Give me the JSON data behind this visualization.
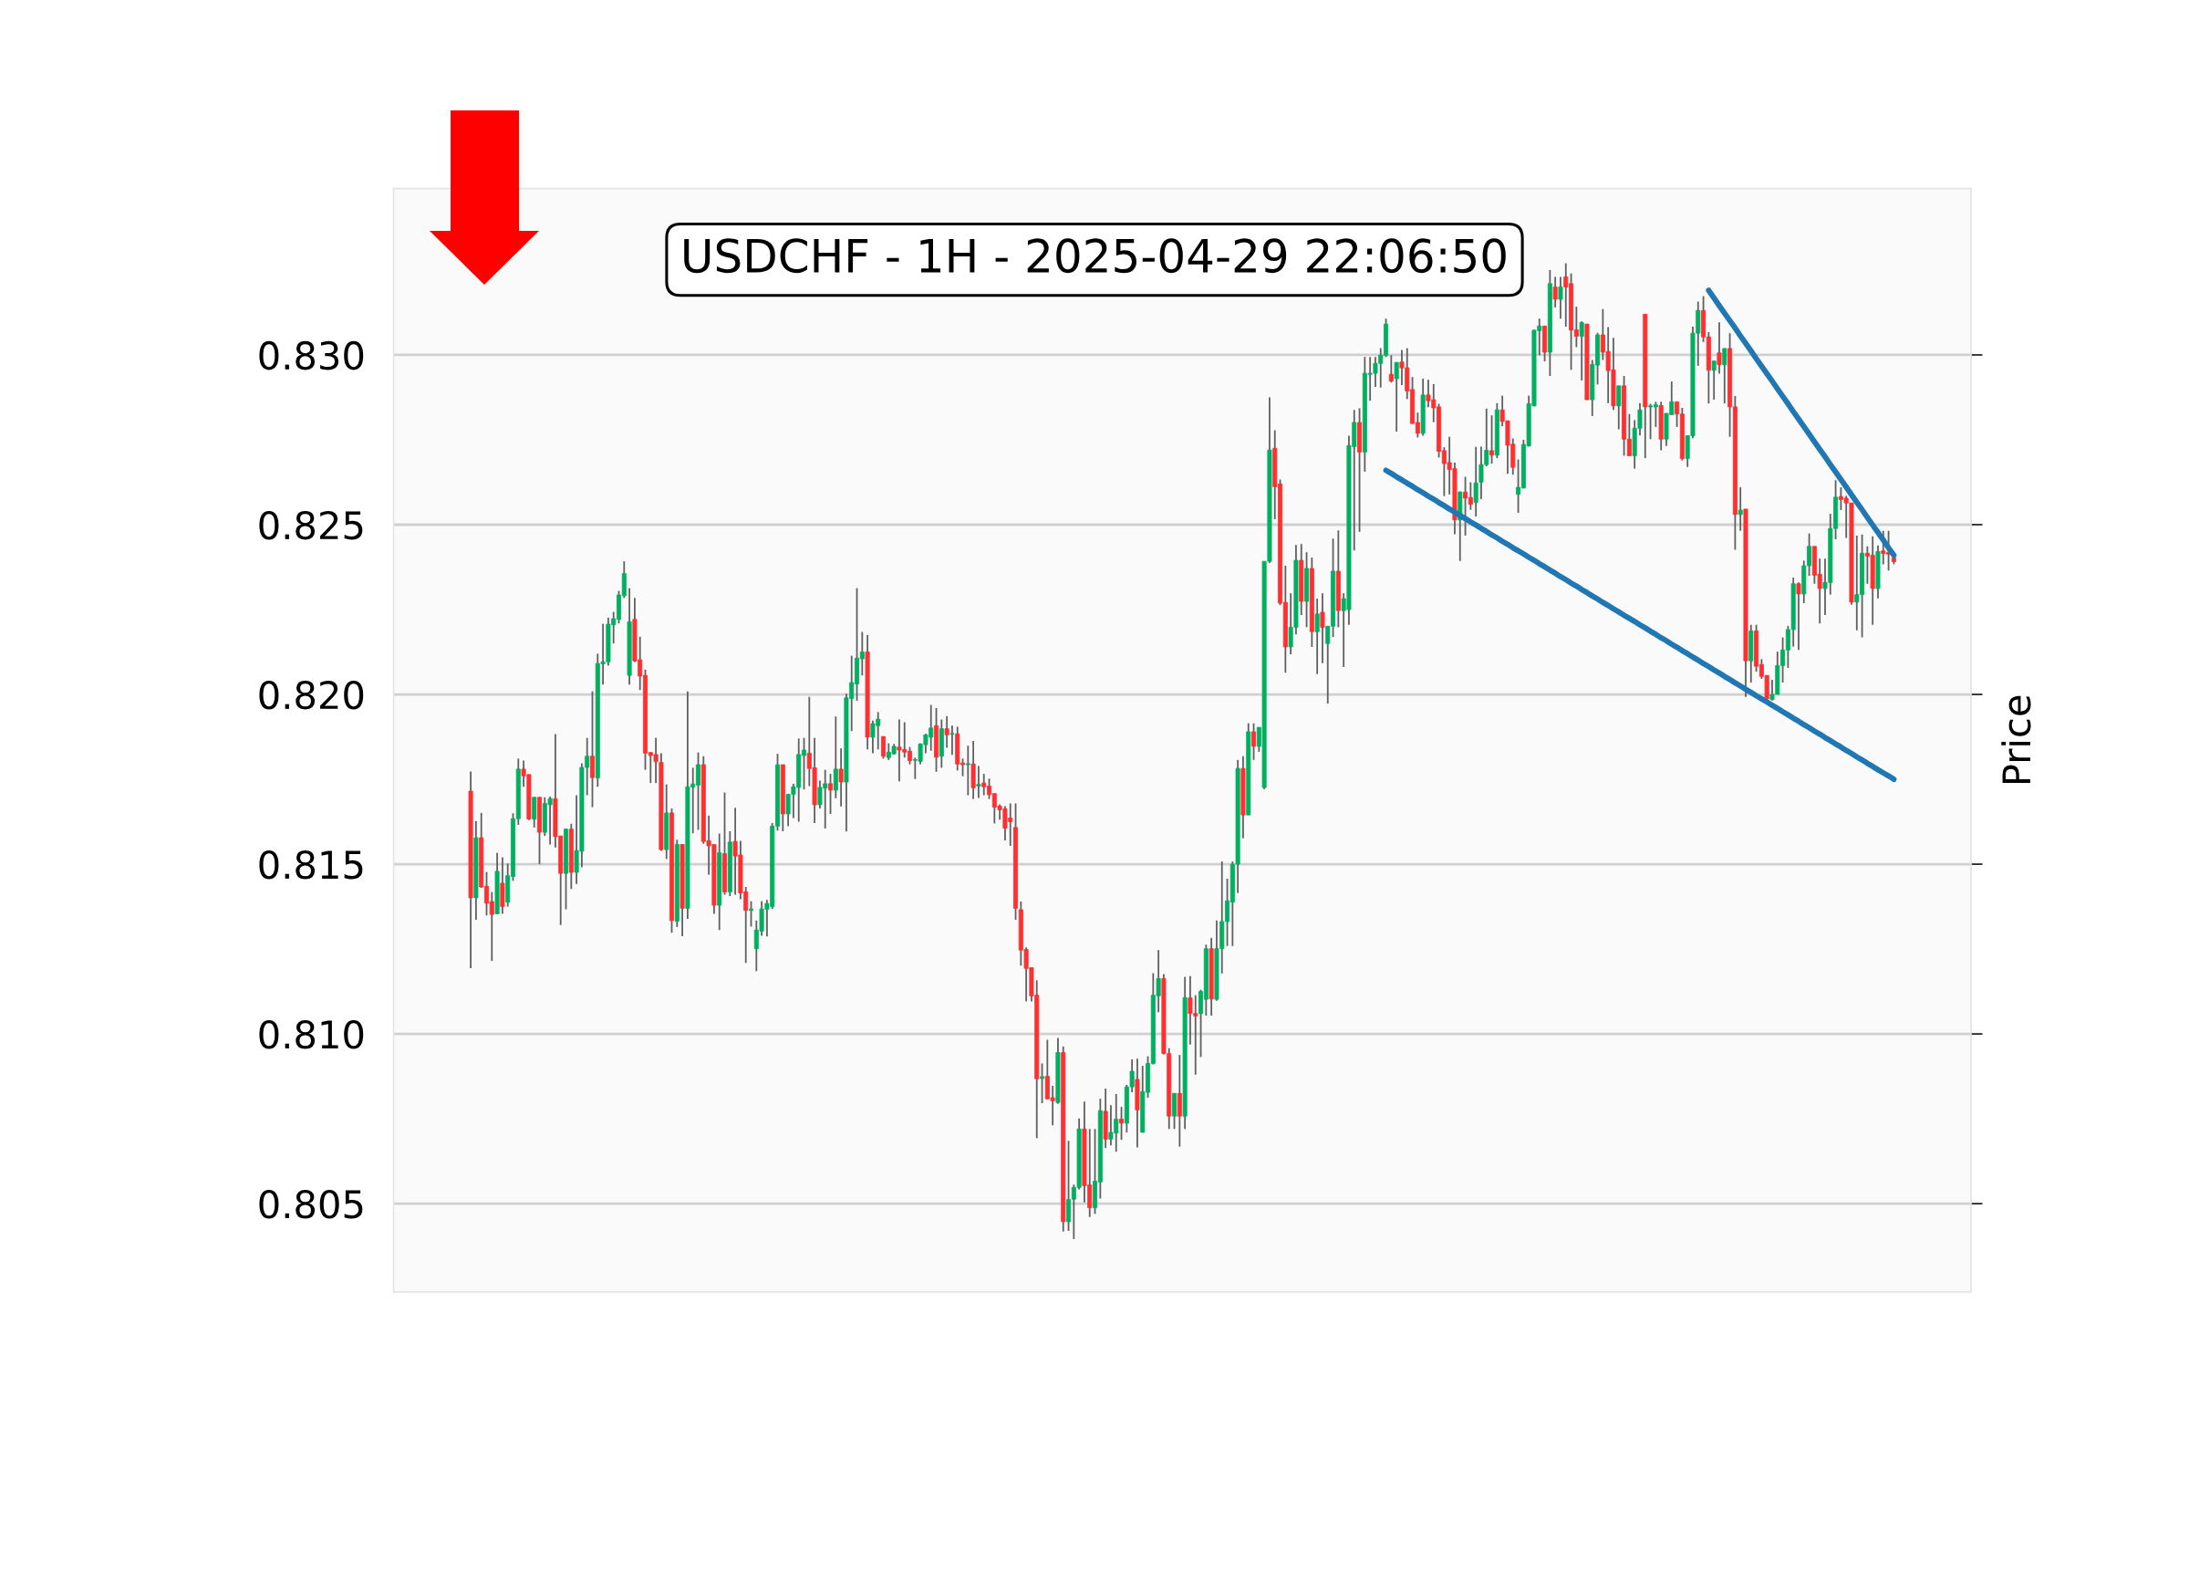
{
  "chart_data": {
    "type": "candlestick",
    "title": "USDCHF - 1H - 2025-04-29 22:06:50",
    "ylabel": "Price",
    "categories": [
      null,
      null,
      null,
      null,
      null,
      null,
      null,
      null,
      null,
      null,
      null,
      null,
      null,
      null,
      null,
      null,
      null,
      null,
      null,
      null,
      null,
      null,
      null,
      null,
      null,
      null,
      null,
      null,
      null,
      null,
      null,
      null,
      null,
      null,
      null,
      null,
      null,
      null,
      null,
      null,
      null,
      null,
      null,
      null,
      null,
      null,
      null,
      null,
      null,
      null,
      null,
      null,
      null,
      null,
      null,
      null,
      null,
      null,
      null,
      null,
      null,
      null,
      null,
      null,
      null,
      null,
      null,
      null,
      null,
      null,
      null,
      null,
      null,
      null,
      null,
      null,
      null,
      null,
      null,
      null,
      null,
      null,
      null,
      null,
      null,
      null,
      null,
      null,
      null,
      null,
      null,
      null,
      null,
      null,
      null,
      null,
      null,
      null,
      null,
      null,
      null,
      null,
      null,
      null,
      null,
      null,
      null,
      null,
      null,
      null,
      null,
      null,
      null,
      null,
      null,
      null,
      null,
      null,
      null,
      null,
      null,
      null,
      null,
      null,
      null,
      null,
      null,
      null,
      null,
      null,
      null,
      null,
      null,
      null,
      null,
      null,
      null,
      null,
      null,
      null,
      null,
      null,
      null,
      null,
      null,
      null,
      null,
      null,
      null,
      null,
      null,
      null,
      null,
      null,
      null,
      null,
      null,
      null,
      null,
      null,
      null,
      null,
      null,
      null,
      null,
      null,
      null,
      null,
      null,
      null,
      null,
      null,
      null,
      null,
      null,
      null,
      null,
      null,
      null,
      null,
      null,
      null,
      null,
      null,
      null,
      null,
      null,
      null,
      null,
      null,
      null,
      null,
      null,
      null,
      null,
      null,
      null,
      null,
      null,
      null,
      null,
      null,
      null,
      null,
      null,
      null,
      null,
      null,
      null,
      null,
      null,
      null,
      null,
      null,
      null,
      null,
      null,
      null,
      null,
      null,
      null,
      null,
      null,
      null,
      null,
      null,
      null,
      null,
      null,
      null,
      null,
      null,
      null,
      null,
      null,
      null,
      null,
      null,
      null,
      null,
      null,
      null,
      null,
      null,
      null,
      null,
      null,
      null,
      null,
      null,
      null,
      null,
      null,
      null,
      null,
      null,
      null,
      null,
      null,
      null,
      null,
      null,
      null,
      null,
      null,
      null,
      null,
      null,
      null,
      null
    ],
    "ohlc": [
      [
        0.81715,
        0.81773,
        0.81194,
        0.81401
      ],
      [
        0.81401,
        0.81627,
        0.81336,
        0.81578
      ],
      [
        0.81578,
        0.81651,
        0.8143,
        0.81433
      ],
      [
        0.81435,
        0.81477,
        0.81349,
        0.81385
      ],
      [
        0.8139,
        0.81418,
        0.81215,
        0.81352
      ],
      [
        0.81354,
        0.81533,
        0.81354,
        0.81479
      ],
      [
        0.81444,
        0.8152,
        0.81354,
        0.81375
      ],
      [
        0.81388,
        0.81502,
        0.81375,
        0.81466
      ],
      [
        0.81464,
        0.8165,
        0.81451,
        0.81634
      ],
      [
        0.81634,
        0.81811,
        0.81616,
        0.8178
      ],
      [
        0.8178,
        0.81805,
        0.81728,
        0.8176
      ],
      [
        0.81764,
        0.81764,
        0.8163,
        0.81633
      ],
      [
        0.81633,
        0.81697,
        0.81608,
        0.81697
      ],
      [
        0.81697,
        0.81697,
        0.815,
        0.81594
      ],
      [
        0.81594,
        0.81697,
        0.81583,
        0.81679
      ],
      [
        0.81675,
        0.81699,
        0.81558,
        0.81693
      ],
      [
        0.81693,
        0.81883,
        0.81549,
        0.81581
      ],
      [
        0.81583,
        0.81583,
        0.81321,
        0.81473
      ],
      [
        0.81473,
        0.81605,
        0.81367,
        0.81603
      ],
      [
        0.81603,
        0.81619,
        0.81427,
        0.81476
      ],
      [
        0.81476,
        0.81703,
        0.81442,
        0.8154
      ],
      [
        0.81538,
        0.81797,
        0.81491,
        0.81785
      ],
      [
        0.81785,
        0.81872,
        0.81703,
        0.81818
      ],
      [
        0.81818,
        0.82009,
        0.81668,
        0.81755
      ],
      [
        0.81754,
        0.8212,
        0.81728,
        0.82091
      ],
      [
        0.8209,
        0.82208,
        0.82029,
        0.82096
      ],
      [
        0.82096,
        0.82226,
        0.82085,
        0.82207
      ],
      [
        0.82205,
        0.82243,
        0.8215,
        0.82223
      ],
      [
        0.82221,
        0.82305,
        0.82209,
        0.82293
      ],
      [
        0.82291,
        0.82392,
        0.82284,
        0.82356
      ],
      [
        0.82056,
        0.82313,
        0.82029,
        0.82214
      ],
      [
        0.82221,
        0.82284,
        0.82095,
        0.82099
      ],
      [
        0.82102,
        0.8217,
        0.82013,
        0.82054
      ],
      [
        0.82056,
        0.82073,
        0.81778,
        0.81827
      ],
      [
        0.81829,
        0.81829,
        0.81739,
        0.8182
      ],
      [
        0.81823,
        0.81872,
        0.81739,
        0.81802
      ],
      [
        0.818,
        0.81827,
        0.81539,
        0.81543
      ],
      [
        0.81543,
        0.81735,
        0.81515,
        0.81651
      ],
      [
        0.81651,
        0.81664,
        0.81298,
        0.81334
      ],
      [
        0.81332,
        0.81572,
        0.81315,
        0.81558
      ],
      [
        0.81558,
        0.81558,
        0.81288,
        0.8137
      ],
      [
        0.8137,
        0.82009,
        0.81339,
        0.81728
      ],
      [
        0.81727,
        0.81784,
        0.81591,
        0.81736
      ],
      [
        0.81733,
        0.81829,
        0.81601,
        0.81793
      ],
      [
        0.81793,
        0.81818,
        0.8156,
        0.81567
      ],
      [
        0.81569,
        0.81643,
        0.81469,
        0.81554
      ],
      [
        0.81558,
        0.81558,
        0.81354,
        0.81379
      ],
      [
        0.81379,
        0.8159,
        0.81306,
        0.81534
      ],
      [
        0.81531,
        0.81711,
        0.8141,
        0.81418
      ],
      [
        0.81418,
        0.81597,
        0.81406,
        0.81565
      ],
      [
        0.81567,
        0.81666,
        0.8141,
        0.81524
      ],
      [
        0.81527,
        0.81569,
        0.81397,
        0.81415
      ],
      [
        0.81419,
        0.81433,
        0.81209,
        0.81364
      ],
      [
        0.81364,
        0.81391,
        0.81316,
        0.81368
      ],
      [
        0.81251,
        0.81334,
        0.81185,
        0.81306
      ],
      [
        0.81303,
        0.81391,
        0.81289,
        0.81368
      ],
      [
        0.81367,
        0.81395,
        0.81287,
        0.81384
      ],
      [
        0.81375,
        0.81621,
        0.81368,
        0.81612
      ],
      [
        0.81612,
        0.81825,
        0.81599,
        0.81793
      ],
      [
        0.81793,
        0.81793,
        0.81597,
        0.81648
      ],
      [
        0.81648,
        0.81706,
        0.81612,
        0.81706
      ],
      [
        0.81706,
        0.81737,
        0.81636,
        0.81728
      ],
      [
        0.81726,
        0.8187,
        0.81625,
        0.81823
      ],
      [
        0.8182,
        0.81872,
        0.8172,
        0.81836
      ],
      [
        0.81827,
        0.81993,
        0.8173,
        0.81782
      ],
      [
        0.81784,
        0.81872,
        0.81621,
        0.81675
      ],
      [
        0.81675,
        0.81746,
        0.81664,
        0.81726
      ],
      [
        0.81724,
        0.81778,
        0.81605,
        0.81737
      ],
      [
        0.81737,
        0.81766,
        0.81648,
        0.81718
      ],
      [
        0.81718,
        0.81935,
        0.81694,
        0.8178
      ],
      [
        0.8178,
        0.81841,
        0.8167,
        0.81742
      ],
      [
        0.81742,
        0.82002,
        0.81596,
        0.8199
      ],
      [
        0.81988,
        0.82114,
        0.81892,
        0.82035
      ],
      [
        0.82031,
        0.82313,
        0.81981,
        0.82107
      ],
      [
        0.82105,
        0.82184,
        0.82056,
        0.82125
      ],
      [
        0.82125,
        0.82175,
        0.81838,
        0.81874
      ],
      [
        0.81874,
        0.81923,
        0.81827,
        0.81914
      ],
      [
        0.81908,
        0.81948,
        0.81838,
        0.81927
      ],
      [
        0.81876,
        0.81876,
        0.81811,
        0.81818
      ],
      [
        0.81814,
        0.81856,
        0.81807,
        0.8183
      ],
      [
        0.81825,
        0.81854,
        0.81823,
        0.81847
      ],
      [
        0.81845,
        0.81926,
        0.81744,
        0.81836
      ],
      [
        0.81838,
        0.81918,
        0.81814,
        0.8183
      ],
      [
        0.81833,
        0.81845,
        0.81794,
        0.81805
      ],
      [
        0.81806,
        0.81814,
        0.81751,
        0.81808
      ],
      [
        0.81803,
        0.81856,
        0.81794,
        0.81854
      ],
      [
        0.81852,
        0.81884,
        0.81827,
        0.81881
      ],
      [
        0.81874,
        0.81969,
        0.81834,
        0.81901
      ],
      [
        0.81908,
        0.8196,
        0.81772,
        0.81815
      ],
      [
        0.81818,
        0.81926,
        0.81784,
        0.81899
      ],
      [
        0.81899,
        0.81936,
        0.81843,
        0.81881
      ],
      [
        0.81883,
        0.81908,
        0.81822,
        0.81885
      ],
      [
        0.81884,
        0.81905,
        0.81776,
        0.81795
      ],
      [
        0.81798,
        0.81811,
        0.81759,
        0.81793
      ],
      [
        0.81793,
        0.81849,
        0.81703,
        0.81796
      ],
      [
        0.81795,
        0.81863,
        0.81692,
        0.81725
      ],
      [
        0.8173,
        0.81789,
        0.81695,
        0.81735
      ],
      [
        0.81739,
        0.81766,
        0.81703,
        0.81728
      ],
      [
        0.8173,
        0.81752,
        0.81692,
        0.81705
      ],
      [
        0.81708,
        0.81708,
        0.8162,
        0.81668
      ],
      [
        0.81671,
        0.81676,
        0.81631,
        0.8166
      ],
      [
        0.81663,
        0.81671,
        0.8157,
        0.81606
      ],
      [
        0.81636,
        0.81679,
        0.81554,
        0.81625
      ],
      [
        0.81608,
        0.81679,
        0.81336,
        0.8137
      ],
      [
        0.81366,
        0.8139,
        0.81201,
        0.81247
      ],
      [
        0.81249,
        0.81255,
        0.81096,
        0.81193
      ],
      [
        0.81195,
        0.81195,
        0.81096,
        0.81112
      ],
      [
        0.81114,
        0.81158,
        0.80693,
        0.80868
      ],
      [
        0.80869,
        0.80913,
        0.80796,
        0.80874
      ],
      [
        0.80875,
        0.80983,
        0.80807,
        0.80809
      ],
      [
        0.80812,
        0.80847,
        0.80731,
        0.80803
      ],
      [
        0.80798,
        0.80988,
        0.80794,
        0.80945
      ],
      [
        0.80945,
        0.80963,
        0.80418,
        0.80447
      ],
      [
        0.80447,
        0.80685,
        0.8042,
        0.80512
      ],
      [
        0.80513,
        0.80556,
        0.80396,
        0.80548
      ],
      [
        0.80548,
        0.80751,
        0.80542,
        0.8072
      ],
      [
        0.8072,
        0.80801,
        0.80504,
        0.80553
      ],
      [
        0.80555,
        0.8072,
        0.80461,
        0.80488
      ],
      [
        0.80488,
        0.8072,
        0.8047,
        0.80566
      ],
      [
        0.80564,
        0.80809,
        0.80515,
        0.80774
      ],
      [
        0.80772,
        0.80839,
        0.80664,
        0.8069
      ],
      [
        0.8069,
        0.8079,
        0.80672,
        0.8071
      ],
      [
        0.80708,
        0.80823,
        0.80653,
        0.80749
      ],
      [
        0.80749,
        0.80785,
        0.80688,
        0.80737
      ],
      [
        0.80737,
        0.8085,
        0.8071,
        0.80844
      ],
      [
        0.80844,
        0.80925,
        0.80828,
        0.8089
      ],
      [
        0.80866,
        0.80927,
        0.80666,
        0.80776
      ],
      [
        0.8071,
        0.80906,
        0.8071,
        0.8083
      ],
      [
        0.80828,
        0.80934,
        0.80812,
        0.80913
      ],
      [
        0.80913,
        0.81179,
        0.8091,
        0.81114
      ],
      [
        0.81112,
        0.81247,
        0.81064,
        0.81163
      ],
      [
        0.81163,
        0.81176,
        0.8094,
        0.80942
      ],
      [
        0.80942,
        0.80958,
        0.8072,
        0.80758
      ],
      [
        0.80758,
        0.80825,
        0.8072,
        0.80825
      ],
      [
        0.80825,
        0.80938,
        0.80668,
        0.80758
      ],
      [
        0.80758,
        0.81168,
        0.8072,
        0.81107
      ],
      [
        0.81106,
        0.8117,
        0.80969,
        0.8106
      ],
      [
        0.8106,
        0.81114,
        0.8088,
        0.81053
      ],
      [
        0.8106,
        0.8113,
        0.80932,
        0.81125
      ],
      [
        0.81102,
        0.81263,
        0.81054,
        0.81251
      ],
      [
        0.81251,
        0.81283,
        0.81054,
        0.81103
      ],
      [
        0.81102,
        0.81334,
        0.81098,
        0.81251
      ],
      [
        0.81251,
        0.81508,
        0.81178,
        0.81331
      ],
      [
        0.81331,
        0.81457,
        0.81259,
        0.81392
      ],
      [
        0.81388,
        0.81508,
        0.81259,
        0.815
      ],
      [
        0.815,
        0.81807,
        0.81415,
        0.81782
      ],
      [
        0.81782,
        0.81818,
        0.81576,
        0.81645
      ],
      [
        0.81645,
        0.81915,
        0.81645,
        0.8189
      ],
      [
        0.8189,
        0.81915,
        0.81807,
        0.81847
      ],
      [
        0.81847,
        0.81903,
        0.81831,
        0.81903
      ],
      [
        0.81726,
        0.82392,
        0.81721,
        0.82392
      ],
      [
        0.82392,
        0.82875,
        0.82387,
        0.8272
      ],
      [
        0.82725,
        0.82778,
        0.82516,
        0.82612
      ],
      [
        0.8262,
        0.82633,
        0.82263,
        0.82269
      ],
      [
        0.82271,
        0.82379,
        0.82064,
        0.8214
      ],
      [
        0.8214,
        0.82298,
        0.82118,
        0.82198
      ],
      [
        0.82198,
        0.8244,
        0.82177,
        0.82395
      ],
      [
        0.82395,
        0.82443,
        0.82234,
        0.82274
      ],
      [
        0.82274,
        0.82419,
        0.82198,
        0.82371
      ],
      [
        0.82371,
        0.82403,
        0.8214,
        0.82185
      ],
      [
        0.82185,
        0.82282,
        0.8206,
        0.82237
      ],
      [
        0.82242,
        0.82298,
        0.82092,
        0.82197
      ],
      [
        0.8215,
        0.82201,
        0.81973,
        0.82201
      ],
      [
        0.82201,
        0.82459,
        0.82169,
        0.82363
      ],
      [
        0.82363,
        0.82483,
        0.82198,
        0.82247
      ],
      [
        0.82247,
        0.82298,
        0.82081,
        0.82282
      ],
      [
        0.8225,
        0.82762,
        0.82205,
        0.82733
      ],
      [
        0.8273,
        0.82838,
        0.82424,
        0.82801
      ],
      [
        0.82801,
        0.82843,
        0.82479,
        0.82714
      ],
      [
        0.82714,
        0.82994,
        0.82656,
        0.82946
      ],
      [
        0.82943,
        0.82994,
        0.82865,
        0.82946
      ],
      [
        0.82946,
        0.82994,
        0.82906,
        0.82975
      ],
      [
        0.82975,
        0.8302,
        0.82904,
        0.82999
      ],
      [
        0.82999,
        0.83107,
        0.82994,
        0.83091
      ],
      [
        0.82943,
        0.82999,
        0.82919,
        0.82923
      ],
      [
        0.8293,
        0.82978,
        0.82774,
        0.82978
      ],
      [
        0.82979,
        0.83015,
        0.82911,
        0.82962
      ],
      [
        0.82962,
        0.8302,
        0.8287,
        0.82894
      ],
      [
        0.82898,
        0.82935,
        0.82798,
        0.82798
      ],
      [
        0.82801,
        0.8283,
        0.82757,
        0.82769
      ],
      [
        0.82769,
        0.8293,
        0.82762,
        0.82882
      ],
      [
        0.82882,
        0.82927,
        0.82846,
        0.82865
      ],
      [
        0.82868,
        0.82914,
        0.82802,
        0.82844
      ],
      [
        0.82847,
        0.82856,
        0.82698,
        0.82716
      ],
      [
        0.82718,
        0.82728,
        0.82584,
        0.8268
      ],
      [
        0.82683,
        0.82759,
        0.82589,
        0.82662
      ],
      [
        0.82665,
        0.82683,
        0.82472,
        0.82514
      ],
      [
        0.82514,
        0.82598,
        0.82393,
        0.82596
      ],
      [
        0.82596,
        0.82641,
        0.82468,
        0.82578
      ],
      [
        0.8258,
        0.82625,
        0.82544,
        0.8256
      ],
      [
        0.82566,
        0.82729,
        0.82524,
        0.82623
      ],
      [
        0.82625,
        0.8273,
        0.82575,
        0.82677
      ],
      [
        0.82677,
        0.82842,
        0.82672,
        0.82719
      ],
      [
        0.82718,
        0.82822,
        0.8268,
        0.82705
      ],
      [
        0.82705,
        0.82858,
        0.82696,
        0.82838
      ],
      [
        0.82838,
        0.8288,
        0.8279,
        0.82804
      ],
      [
        0.82806,
        0.82806,
        0.8265,
        0.82734
      ],
      [
        0.82737,
        0.82754,
        0.82647,
        0.82669
      ],
      [
        0.82589,
        0.82692,
        0.82535,
        0.8261
      ],
      [
        0.82608,
        0.8275,
        0.82607,
        0.82736
      ],
      [
        0.82732,
        0.8288,
        0.8273,
        0.82856
      ],
      [
        0.8285,
        0.83073,
        0.82849,
        0.83073
      ],
      [
        0.83071,
        0.83107,
        0.82999,
        0.83085
      ],
      [
        0.83085,
        0.83085,
        0.82981,
        0.83008
      ],
      [
        0.83008,
        0.8325,
        0.82938,
        0.8321
      ],
      [
        0.832,
        0.8323,
        0.8314,
        0.83164
      ],
      [
        0.83164,
        0.8323,
        0.83107,
        0.832
      ],
      [
        0.8323,
        0.8327,
        0.83083,
        0.832
      ],
      [
        0.8321,
        0.8324,
        0.82956,
        0.83073
      ],
      [
        0.83074,
        0.83142,
        0.83023,
        0.83055
      ],
      [
        0.83055,
        0.83099,
        0.82925,
        0.83095
      ],
      [
        0.83091,
        0.83091,
        0.82868,
        0.82868
      ],
      [
        0.82868,
        0.82985,
        0.8282,
        0.82972
      ],
      [
        0.8297,
        0.83065,
        0.82913,
        0.83059
      ],
      [
        0.83059,
        0.83135,
        0.82985,
        0.83008
      ],
      [
        0.8301,
        0.83082,
        0.82858,
        0.82954
      ],
      [
        0.82956,
        0.8305,
        0.82838,
        0.8285
      ],
      [
        0.8285,
        0.82909,
        0.82781,
        0.82909
      ],
      [
        0.82909,
        0.82938,
        0.82703,
        0.82752
      ],
      [
        0.82752,
        0.82826,
        0.82703,
        0.82703
      ],
      [
        0.82703,
        0.82808,
        0.82665,
        0.82784
      ],
      [
        0.82784,
        0.82858,
        0.82763,
        0.82838
      ],
      [
        0.8312,
        0.8312,
        0.82696,
        0.82847
      ],
      [
        0.82847,
        0.82856,
        0.82752,
        0.8285
      ],
      [
        0.82847,
        0.82862,
        0.82788,
        0.82853
      ],
      [
        0.82851,
        0.82862,
        0.82719,
        0.82752
      ],
      [
        0.82752,
        0.82828,
        0.82732,
        0.82828
      ],
      [
        0.82824,
        0.82922,
        0.82824,
        0.82862
      ],
      [
        0.82862,
        0.82862,
        0.82788,
        0.82826
      ],
      [
        0.82826,
        0.82844,
        0.82689,
        0.82695
      ],
      [
        0.82695,
        0.82762,
        0.8267,
        0.82762
      ],
      [
        0.82762,
        0.83083,
        0.82755,
        0.83064
      ],
      [
        0.83064,
        0.83157,
        0.82968,
        0.83131
      ],
      [
        0.83131,
        0.83173,
        0.83038,
        0.83053
      ],
      [
        0.83053,
        0.83067,
        0.82857,
        0.82955
      ],
      [
        0.82955,
        0.82982,
        0.82868,
        0.82982
      ],
      [
        0.83006,
        0.83096,
        0.82945,
        0.82971
      ],
      [
        0.82971,
        0.83019,
        0.82857,
        0.83019
      ],
      [
        0.83019,
        0.83064,
        0.82759,
        0.82847
      ],
      [
        0.82847,
        0.82879,
        0.82426,
        0.8253
      ],
      [
        0.8253,
        0.8261,
        0.82482,
        0.82543
      ],
      [
        0.82546,
        0.82546,
        0.81993,
        0.82099
      ],
      [
        0.82099,
        0.82205,
        0.82035,
        0.82187
      ],
      [
        0.82187,
        0.82205,
        0.82067,
        0.82083
      ],
      [
        0.82088,
        0.82104,
        0.82046,
        0.82053
      ],
      [
        0.82056,
        0.82056,
        0.81982,
        0.81987
      ],
      [
        0.81985,
        0.82043,
        0.81982,
        0.82
      ],
      [
        0.82,
        0.82126,
        0.82,
        0.82085
      ],
      [
        0.82085,
        0.82168,
        0.82035,
        0.82131
      ],
      [
        0.82131,
        0.82202,
        0.82078,
        0.82191
      ],
      [
        0.82191,
        0.82344,
        0.82141,
        0.82326
      ],
      [
        0.82326,
        0.8233,
        0.82131,
        0.82296
      ],
      [
        0.82296,
        0.82394,
        0.82269,
        0.82379
      ],
      [
        0.82379,
        0.82474,
        0.82349,
        0.82436
      ],
      [
        0.82436,
        0.82436,
        0.82326,
        0.82351
      ],
      [
        0.82354,
        0.824,
        0.82209,
        0.82312
      ],
      [
        0.82312,
        0.824,
        0.82234,
        0.8233
      ],
      [
        0.8233,
        0.82532,
        0.82294,
        0.82489
      ],
      [
        0.82489,
        0.82631,
        0.82457,
        0.82581
      ],
      [
        0.82583,
        0.8261,
        0.82543,
        0.82574
      ],
      [
        0.82578,
        0.82585,
        0.82461,
        0.82564
      ],
      [
        0.82564,
        0.82564,
        0.82264,
        0.82272
      ],
      [
        0.82272,
        0.82468,
        0.82189,
        0.82294
      ],
      [
        0.82294,
        0.82471,
        0.82168,
        0.82416
      ],
      [
        0.82416,
        0.82436,
        0.82326,
        0.82407
      ],
      [
        0.8241,
        0.82466,
        0.82205,
        0.82312
      ],
      [
        0.82312,
        0.82439,
        0.82283,
        0.82421
      ],
      [
        0.82423,
        0.82482,
        0.82383,
        0.82415
      ],
      [
        0.82418,
        0.82482,
        0.82365,
        0.82413
      ],
      [
        0.82402,
        0.82407,
        0.82383,
        0.82391
      ]
    ],
    "series": [
      {
        "type": "line",
        "color": "#1f77b4",
        "values": [
          null,
          null,
          null,
          null,
          null,
          null,
          null,
          null,
          null,
          null,
          null,
          null,
          null,
          null,
          null,
          null,
          null,
          null,
          null,
          null,
          null,
          null,
          null,
          null,
          null,
          null,
          null,
          null,
          null,
          null,
          null,
          null,
          null,
          null,
          null,
          null,
          null,
          null,
          null,
          null,
          null,
          null,
          null,
          null,
          null,
          null,
          null,
          null,
          null,
          null,
          null,
          null,
          null,
          null,
          null,
          null,
          null,
          null,
          null,
          null,
          null,
          null,
          null,
          null,
          null,
          null,
          null,
          null,
          null,
          null,
          null,
          null,
          null,
          null,
          null,
          null,
          null,
          null,
          null,
          null,
          null,
          null,
          null,
          null,
          null,
          null,
          null,
          null,
          null,
          null,
          null,
          null,
          null,
          null,
          null,
          null,
          null,
          null,
          null,
          null,
          null,
          null,
          null,
          null,
          null,
          null,
          null,
          null,
          null,
          null,
          null,
          null,
          null,
          null,
          null,
          null,
          null,
          null,
          null,
          null,
          null,
          null,
          null,
          null,
          null,
          null,
          null,
          null,
          null,
          null,
          null,
          null,
          null,
          null,
          null,
          null,
          null,
          null,
          null,
          null,
          null,
          null,
          null,
          null,
          null,
          null,
          null,
          null,
          null,
          null,
          null,
          null,
          null,
          null,
          null,
          null,
          null,
          null,
          null,
          null,
          null,
          null,
          null,
          null,
          null,
          null,
          null,
          null,
          null,
          null,
          null,
          null,
          null,
          0.8266,
          0.82651,
          0.82641,
          0.82632,
          0.82622,
          0.82613,
          0.82603,
          0.82594,
          0.82584,
          0.82575,
          0.82565,
          0.82556,
          0.82546,
          0.82537,
          0.82527,
          0.82518,
          0.82508,
          0.82499,
          0.82489,
          0.8248,
          0.8247,
          0.82461,
          0.82451,
          0.82442,
          0.82432,
          0.82423,
          0.82414,
          0.82404,
          0.82395,
          0.82385,
          0.82376,
          0.82366,
          0.82357,
          0.82347,
          0.82338,
          0.82328,
          0.82319,
          0.82309,
          0.823,
          0.8229,
          0.82281,
          0.82271,
          0.82262,
          0.82252,
          0.82243,
          0.82233,
          0.82224,
          0.82215,
          0.82205,
          0.82196,
          0.82186,
          0.82177,
          0.82167,
          0.82158,
          0.82148,
          0.82139,
          0.82129,
          0.8212,
          0.8211,
          0.82101,
          0.82091,
          0.82082,
          0.82072,
          0.82063,
          0.82053,
          0.82044,
          0.82034,
          0.82025,
          0.82015,
          0.82006,
          0.81996,
          0.81987,
          0.81978,
          0.81968,
          0.81959,
          0.81949,
          0.8194,
          0.8193,
          0.81921,
          0.81911,
          0.81902,
          0.81892,
          0.81883,
          0.81873,
          0.81864,
          0.81854,
          0.81845,
          0.81835,
          0.81826,
          0.81816,
          0.81807,
          0.81797,
          0.81788,
          0.81778,
          0.81769,
          0.8176,
          0.8175
        ]
      },
      {
        "type": "line",
        "color": "#1f77b4",
        "values": [
          null,
          null,
          null,
          null,
          null,
          null,
          null,
          null,
          null,
          null,
          null,
          null,
          null,
          null,
          null,
          null,
          null,
          null,
          null,
          null,
          null,
          null,
          null,
          null,
          null,
          null,
          null,
          null,
          null,
          null,
          null,
          null,
          null,
          null,
          null,
          null,
          null,
          null,
          null,
          null,
          null,
          null,
          null,
          null,
          null,
          null,
          null,
          null,
          null,
          null,
          null,
          null,
          null,
          null,
          null,
          null,
          null,
          null,
          null,
          null,
          null,
          null,
          null,
          null,
          null,
          null,
          null,
          null,
          null,
          null,
          null,
          null,
          null,
          null,
          null,
          null,
          null,
          null,
          null,
          null,
          null,
          null,
          null,
          null,
          null,
          null,
          null,
          null,
          null,
          null,
          null,
          null,
          null,
          null,
          null,
          null,
          null,
          null,
          null,
          null,
          null,
          null,
          null,
          null,
          null,
          null,
          null,
          null,
          null,
          null,
          null,
          null,
          null,
          null,
          null,
          null,
          null,
          null,
          null,
          null,
          null,
          null,
          null,
          null,
          null,
          null,
          null,
          null,
          null,
          null,
          null,
          null,
          null,
          null,
          null,
          null,
          null,
          null,
          null,
          null,
          null,
          null,
          null,
          null,
          null,
          null,
          null,
          null,
          null,
          null,
          null,
          null,
          null,
          null,
          null,
          null,
          null,
          null,
          null,
          null,
          null,
          null,
          null,
          null,
          null,
          null,
          null,
          null,
          null,
          null,
          null,
          null,
          null,
          null,
          null,
          null,
          null,
          null,
          null,
          null,
          null,
          null,
          null,
          null,
          null,
          null,
          null,
          null,
          null,
          null,
          null,
          null,
          null,
          null,
          null,
          null,
          null,
          null,
          null,
          null,
          null,
          null,
          null,
          null,
          null,
          null,
          null,
          null,
          null,
          null,
          null,
          null,
          null,
          null,
          null,
          null,
          null,
          null,
          null,
          null,
          null,
          null,
          null,
          null,
          null,
          null,
          null,
          null,
          null,
          null,
          null,
          null,
          null,
          null,
          0.8319,
          0.83168,
          0.83145,
          0.83123,
          0.83101,
          0.83079,
          0.83056,
          0.83034,
          0.83012,
          0.82989,
          0.82967,
          0.82945,
          0.82923,
          0.829,
          0.82878,
          0.82856,
          0.82833,
          0.82811,
          0.82789,
          0.82767,
          0.82744,
          0.82722,
          0.827,
          0.82677,
          0.82655,
          0.82633,
          0.82611,
          0.82588,
          0.82566,
          0.82544,
          0.82521,
          0.82499,
          0.82477,
          0.82455,
          0.82432,
          0.8241
        ]
      }
    ],
    "ylim": [
      0.8024,
      0.8349
    ],
    "yticks": [
      0.805,
      {
        "value": 0.81,
        "label": "0.810"
      },
      0.815,
      {
        "value": 0.82,
        "label": "0.820"
      },
      0.825,
      {
        "value": 0.83,
        "label": "0.830"
      }
    ],
    "grid": "y",
    "tick_labels": "y"
  }
}
